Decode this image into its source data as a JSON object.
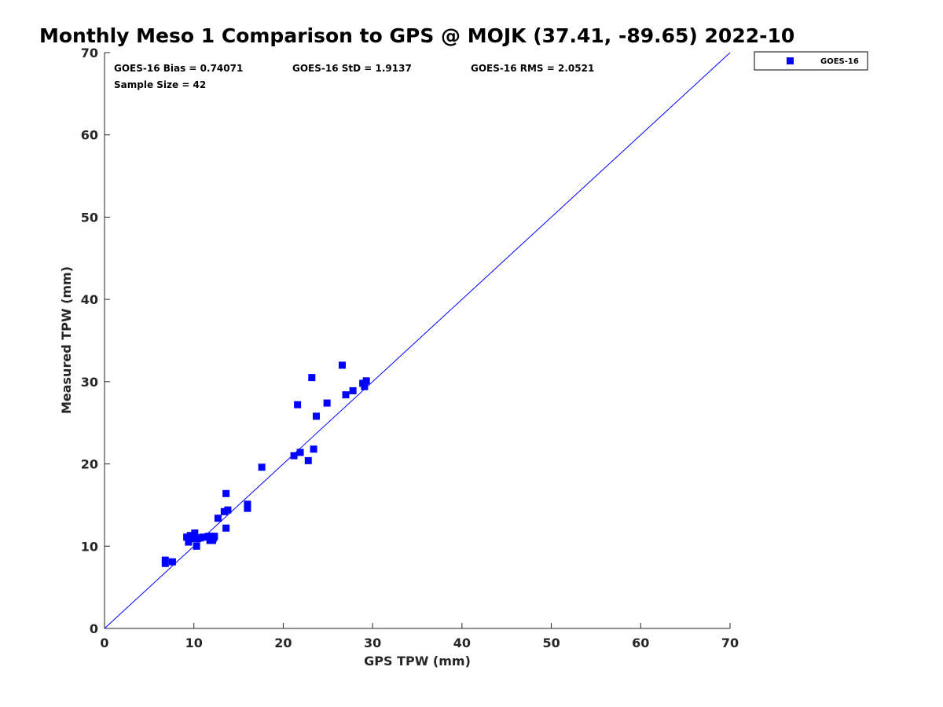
{
  "chart_data": {
    "type": "scatter",
    "title": "Monthly Meso 1 Comparison to GPS @ MOJK (37.41, -89.65) 2022-10",
    "xlabel": "GPS TPW (mm)",
    "ylabel": "Measured TPW (mm)",
    "xlim": [
      0,
      70
    ],
    "ylim": [
      0,
      70
    ],
    "xticks": [
      0,
      10,
      20,
      30,
      40,
      50,
      60,
      70
    ],
    "yticks": [
      0,
      10,
      20,
      30,
      40,
      50,
      60,
      70
    ],
    "grid": false,
    "legend_position": "top-right, outside plot area",
    "reference_line": {
      "type": "one-to-one",
      "x": [
        0,
        70
      ],
      "y": [
        0,
        70
      ],
      "color": "#0000ff"
    },
    "stats": {
      "bias": "GOES-16 Bias = 0.74071",
      "std": "GOES-16 StD = 1.9137",
      "rms": "GOES-16 RMS = 2.0521",
      "sample_size": "Sample Size = 42"
    },
    "series": [
      {
        "name": "GOES-16",
        "color": "#0000ff",
        "marker": "square",
        "points": [
          [
            6.8,
            8.3
          ],
          [
            6.8,
            7.9
          ],
          [
            7.6,
            8.1
          ],
          [
            9.2,
            11.1
          ],
          [
            9.4,
            10.5
          ],
          [
            9.6,
            11.3
          ],
          [
            10.0,
            11.0
          ],
          [
            10.1,
            11.6
          ],
          [
            10.3,
            10.0
          ],
          [
            10.4,
            10.9
          ],
          [
            11.0,
            11.1
          ],
          [
            11.6,
            11.2
          ],
          [
            11.8,
            10.7
          ],
          [
            12.1,
            10.7
          ],
          [
            12.3,
            11.2
          ],
          [
            12.7,
            13.4
          ],
          [
            13.4,
            14.2
          ],
          [
            13.6,
            16.4
          ],
          [
            13.6,
            12.2
          ],
          [
            13.8,
            14.4
          ],
          [
            16.0,
            15.1
          ],
          [
            16.0,
            14.6
          ],
          [
            17.6,
            19.6
          ],
          [
            21.2,
            21.0
          ],
          [
            21.6,
            27.2
          ],
          [
            21.9,
            21.4
          ],
          [
            22.8,
            20.4
          ],
          [
            23.2,
            30.5
          ],
          [
            23.4,
            21.8
          ],
          [
            23.7,
            25.8
          ],
          [
            24.9,
            27.4
          ],
          [
            26.6,
            32.0
          ],
          [
            27.0,
            28.4
          ],
          [
            27.8,
            28.9
          ],
          [
            28.9,
            29.8
          ],
          [
            29.1,
            29.4
          ],
          [
            29.3,
            30.1
          ],
          [
            9.9,
            10.9
          ],
          [
            10.7,
            11.0
          ],
          [
            11.9,
            11.2
          ],
          [
            12.2,
            11.0
          ],
          [
            9.5,
            11.0
          ]
        ]
      }
    ]
  }
}
